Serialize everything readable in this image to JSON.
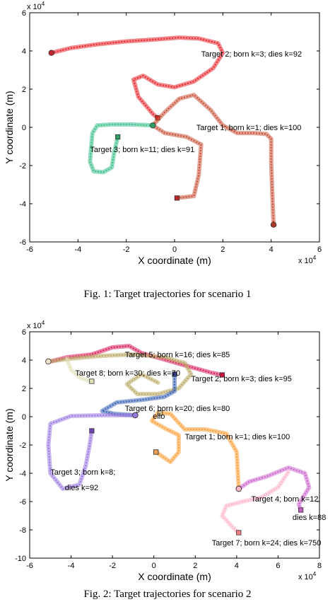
{
  "figures": [
    {
      "caption": "Fig. 1: Target trajectories for scenario 1",
      "chart_data": {
        "type": "line",
        "title": "",
        "xlabel": "X coordinate (m)",
        "ylabel": "Y coordinate (m)",
        "x_exponent_label": "x 10",
        "y_exponent_label": "x 10",
        "exponent_power": "4",
        "xlim": [
          -6,
          6
        ],
        "ylim": [
          -6,
          6
        ],
        "xticks": [
          -6,
          -4,
          -2,
          0,
          2,
          4,
          6
        ],
        "yticks": [
          -6,
          -4,
          -2,
          0,
          2,
          4,
          6
        ],
        "grid": false,
        "legend": "none",
        "series": [
          {
            "name": "",
            "color": "#e8262c",
            "start_marker": "circle",
            "start_color": "#c0262c",
            "end_marker": "square",
            "end_color": "#d42020",
            "points": [
              [
                -5.1,
                3.9
              ],
              [
                -4.3,
                4.15
              ],
              [
                -3.2,
                4.35
              ],
              [
                -2.0,
                4.5
              ],
              [
                -0.8,
                4.6
              ],
              [
                0.2,
                4.7
              ],
              [
                1.0,
                4.65
              ],
              [
                1.8,
                4.4
              ],
              [
                2.0,
                3.9
              ],
              [
                1.6,
                3.1
              ],
              [
                0.8,
                2.4
              ],
              [
                0.0,
                2.1
              ],
              [
                -0.7,
                2.25
              ],
              [
                -1.3,
                2.7
              ],
              [
                -1.7,
                2.5
              ],
              [
                -1.5,
                1.6
              ],
              [
                -0.9,
                0.7
              ],
              [
                -0.7,
                0.5
              ]
            ]
          },
          {
            "name": "",
            "color": "#c8533a",
            "start_marker": "circle",
            "start_color": "#a83a2a",
            "end_marker": "square",
            "end_color": "#b82828",
            "points": [
              [
                4.1,
                -5.1
              ],
              [
                4.05,
                -3.6
              ],
              [
                4.0,
                -1.8
              ],
              [
                4.0,
                -0.6
              ],
              [
                3.8,
                -0.35
              ],
              [
                3.3,
                -0.3
              ],
              [
                2.6,
                -0.3
              ],
              [
                2.0,
                0.1
              ],
              [
                1.5,
                0.9
              ],
              [
                0.8,
                1.7
              ],
              [
                0.2,
                1.5
              ],
              [
                -0.4,
                0.8
              ],
              [
                -0.9,
                0.1
              ],
              [
                -0.4,
                -0.3
              ],
              [
                0.5,
                -0.5
              ],
              [
                1.1,
                -0.9
              ],
              [
                1.0,
                -2.5
              ],
              [
                0.8,
                -3.6
              ],
              [
                0.1,
                -3.7
              ]
            ]
          },
          {
            "name": "",
            "color": "#3cc08a",
            "start_marker": "circle",
            "start_color": "#2e9e62",
            "end_marker": "square",
            "end_color": "#2e9e62",
            "points": [
              [
                -0.9,
                0.1
              ],
              [
                -1.8,
                0.15
              ],
              [
                -2.6,
                0.15
              ],
              [
                -3.2,
                0.1
              ],
              [
                -3.4,
                -0.3
              ],
              [
                -3.45,
                -1.0
              ],
              [
                -3.5,
                -1.8
              ],
              [
                -3.35,
                -2.3
              ],
              [
                -2.95,
                -2.35
              ],
              [
                -2.6,
                -2.1
              ],
              [
                -2.5,
                -1.3
              ],
              [
                -2.35,
                -0.5
              ]
            ]
          }
        ],
        "annotations": [
          {
            "text": "Target 2; born k=3; dies k=92",
            "x": 1.1,
            "y": 3.7
          },
          {
            "text": "Target 1; born k=1; dies k=100",
            "x": 0.9,
            "y": -0.15
          },
          {
            "text": "Target 3; born k=11; dies k=91",
            "x": -3.5,
            "y": -1.3
          }
        ]
      }
    },
    {
      "caption": "Fig. 2: Target trajectories for scenario 2",
      "chart_data": {
        "type": "line",
        "title": "",
        "xlabel": "X coordinate (m)",
        "ylabel": "Y coordinate (m)",
        "x_exponent_label": "x 10",
        "y_exponent_label": "x 10",
        "exponent_power": "4",
        "xlim": [
          -6,
          8
        ],
        "ylim": [
          -10,
          6
        ],
        "xticks": [
          -6,
          -4,
          -2,
          0,
          2,
          4,
          6,
          8
        ],
        "yticks": [
          -10,
          -8,
          -6,
          -4,
          -2,
          0,
          2,
          4,
          6
        ],
        "grid": false,
        "legend": "none",
        "series": [
          {
            "name": "",
            "color": "#d81f5e",
            "start_marker": "none",
            "start_color": "#d81f5e",
            "end_marker": "square",
            "end_color": "#c8163e",
            "points": [
              [
                -5.0,
                3.9
              ],
              [
                -4.2,
                4.2
              ],
              [
                -3.0,
                4.4
              ],
              [
                -2.0,
                4.9
              ],
              [
                -1.2,
                5.0
              ],
              [
                -0.6,
                4.5
              ],
              [
                0.6,
                4.0
              ],
              [
                1.8,
                3.5
              ],
              [
                2.8,
                3.1
              ],
              [
                3.3,
                2.95
              ]
            ]
          },
          {
            "name": "",
            "color": "#b9a964",
            "start_marker": "circle",
            "start_color": "#f0e2c8",
            "end_marker": "none",
            "end_color": "#b9a964",
            "points": [
              [
                -5.1,
                3.9
              ],
              [
                -4.0,
                4.1
              ],
              [
                -2.5,
                4.3
              ],
              [
                -1.0,
                4.4
              ],
              [
                0.5,
                4.2
              ],
              [
                1.5,
                3.8
              ],
              [
                1.8,
                3.0
              ],
              [
                1.2,
                2.0
              ],
              [
                0.2,
                1.6
              ],
              [
                -0.8,
                1.6
              ],
              [
                -1.3,
                2.3
              ],
              [
                -0.6,
                3.0
              ],
              [
                0.2,
                2.4
              ]
            ]
          },
          {
            "name": "",
            "color": "#e0e0b8",
            "start_marker": "none",
            "start_color": "#e0e0b8",
            "end_marker": "square",
            "end_color": "#e0e0b8",
            "points": [
              [
                -4.2,
                4.1
              ],
              [
                -4.0,
                3.3
              ],
              [
                -3.5,
                2.7
              ],
              [
                -3.0,
                2.5
              ]
            ]
          },
          {
            "name": "",
            "color": "#3a62b5",
            "start_marker": "circle",
            "start_color": "#3a62b5",
            "end_marker": "square",
            "end_color": "#33408a",
            "points": [
              [
                -0.9,
                0.1
              ],
              [
                -1.9,
                0.2
              ],
              [
                -2.5,
                0.4
              ],
              [
                -1.8,
                1.0
              ],
              [
                -0.5,
                1.2
              ],
              [
                0.5,
                1.4
              ],
              [
                1.0,
                1.8
              ],
              [
                1.0,
                3.0
              ]
            ]
          },
          {
            "name": "",
            "color": "#ff9f38",
            "start_marker": "circle",
            "start_color": "#ff9f38",
            "end_marker": "square",
            "end_color": "#ff9f38",
            "points": [
              [
                4.1,
                -5.1
              ],
              [
                4.0,
                -2.5
              ],
              [
                3.5,
                -1.2
              ],
              [
                2.5,
                -0.9
              ],
              [
                1.5,
                -0.9
              ],
              [
                1.3,
                -0.6
              ],
              [
                0.8,
                0.2
              ],
              [
                0.2,
                0.3
              ],
              [
                -0.1,
                -0.3
              ],
              [
                0.5,
                -0.8
              ],
              [
                1.2,
                -1.3
              ],
              [
                1.2,
                -2.5
              ],
              [
                0.8,
                -3.2
              ],
              [
                0.1,
                -2.5
              ]
            ]
          },
          {
            "name": "",
            "color": "#9a7ae0",
            "start_marker": "circle",
            "start_color": "#9a7ae0",
            "end_marker": "square",
            "end_color": "#6e44b0",
            "points": [
              [
                -0.9,
                0.1
              ],
              [
                -2.5,
                0.1
              ],
              [
                -4.0,
                0.05
              ],
              [
                -5.0,
                -0.5
              ],
              [
                -5.1,
                -2.0
              ],
              [
                -5.0,
                -4.0
              ],
              [
                -4.4,
                -5.1
              ],
              [
                -3.6,
                -4.8
              ],
              [
                -3.3,
                -3.5
              ],
              [
                -3.1,
                -2.0
              ],
              [
                -3.0,
                -1.0
              ]
            ]
          },
          {
            "name": "",
            "color": "#cc66cc",
            "start_marker": "circle",
            "start_color": "#ffb5c8",
            "end_marker": "square",
            "end_color": "#c060c0",
            "points": [
              [
                4.1,
                -5.1
              ],
              [
                4.6,
                -4.6
              ],
              [
                5.5,
                -4.2
              ],
              [
                6.5,
                -3.6
              ],
              [
                7.3,
                -4.0
              ],
              [
                7.5,
                -5.0
              ],
              [
                7.0,
                -6.2
              ],
              [
                7.1,
                -6.6
              ]
            ]
          },
          {
            "name": "",
            "color": "#ffb5c8",
            "start_marker": "none",
            "start_color": "#ffb5c8",
            "end_marker": "square",
            "end_color": "#f08080",
            "points": [
              [
                6.5,
                -3.9
              ],
              [
                6.0,
                -5.0
              ],
              [
                5.2,
                -5.7
              ],
              [
                4.3,
                -6.0
              ],
              [
                3.5,
                -6.3
              ],
              [
                3.3,
                -7.0
              ],
              [
                3.8,
                -7.8
              ],
              [
                4.1,
                -8.2
              ]
            ]
          }
        ],
        "extra_markers": [
          {
            "shape": "square",
            "x": 0.3,
            "y": 0.25,
            "color": "#d8c090"
          },
          {
            "shape": "square",
            "x": 0.1,
            "y": -2.5,
            "color": "#f5a352"
          }
        ],
        "annotations": [
          {
            "text": "Target 5; born k=16; dies k=85",
            "x": -1.4,
            "y": 4.2
          },
          {
            "text": "Target 8; born k=30; dies k=70",
            "x": -3.8,
            "y": 2.9
          },
          {
            "text": "Target 2; born k=3; dies k=95",
            "x": 1.8,
            "y": 2.5
          },
          {
            "text": "Target 6; born k=20; dies k=80",
            "x": -1.4,
            "y": 0.4
          },
          {
            "text": "Target 1; born k=1; dies k=100",
            "x": 1.5,
            "y": -1.6
          },
          {
            "text": "Target 3; born k=8;",
            "x": -5.0,
            "y": -4.1
          },
          {
            "text": "dies k=92",
            "x": -4.3,
            "y": -5.2
          },
          {
            "text": "Target 4; born k=12;",
            "x": 4.7,
            "y": -6.0
          },
          {
            "text": "dies k=88",
            "x": 6.7,
            "y": -7.3
          },
          {
            "text": "Target 7; born k=24; dies k=750",
            "x": 2.8,
            "y": -9.1
          },
          {
            "text": "ello",
            "x": -0.05,
            "y": -0.15
          }
        ]
      }
    }
  ]
}
